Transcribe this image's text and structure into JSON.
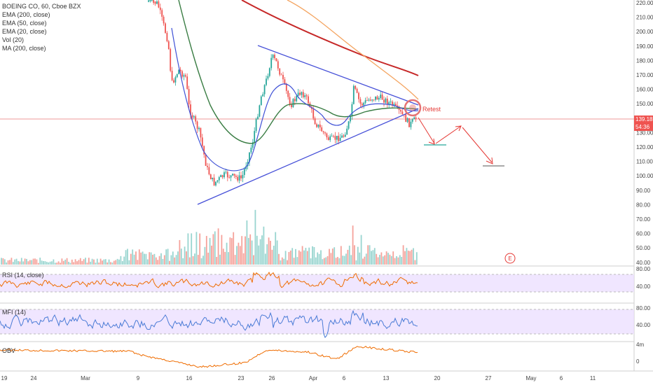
{
  "legend": {
    "title": "BOEING CO, 60, Cboe BZX",
    "lines": [
      "EMA (200, close)",
      "EMA (50, close)",
      "EMA (20, close)",
      "Vol (20)",
      "MA (200, close)"
    ]
  },
  "panels": {
    "rsi": "RSI (14, close)",
    "mfi": "MFI (14)",
    "obv": "OBV"
  },
  "annotations": {
    "retest": "Retest",
    "earnings_marker": "E"
  },
  "price_badges": {
    "last_price": "139.18",
    "countdown": "54:36"
  },
  "colors": {
    "ema200": "#c62828",
    "ema50": "#3a7d44",
    "ema20": "#3f51d6",
    "ma200": "#f4a460",
    "triangle": "#4650d8",
    "arrows": "#e53935",
    "up": "#26a69a",
    "down": "#ef5350",
    "rsi": "#ef6c00",
    "mfi": "#4a7bd6",
    "obv": "#ef6c00",
    "band": "#eadcff"
  },
  "chart_data": [
    {
      "type": "line",
      "title": "BOEING CO, 60, Cboe BZX",
      "price_axis": {
        "ticks": [
          "220.00",
          "210.00",
          "200.00",
          "190.00",
          "180.00",
          "170.00",
          "160.00",
          "150.00",
          "140.00",
          "130.00",
          "120.00",
          "110.00",
          "100.00",
          "90.00",
          "80.00",
          "70.00",
          "60.00",
          "50.00",
          "40.00"
        ],
        "ylim": [
          35,
          225
        ]
      },
      "x_tick_labels": [
        "19",
        "24",
        "Mar",
        "9",
        "16",
        "23",
        "26",
        "Apr",
        "6",
        "13",
        "20",
        "27",
        "May",
        "6",
        "11"
      ],
      "series": [
        {
          "name": "EMA (200, close)",
          "x": [
            0.37,
            0.42,
            0.47,
            0.52,
            0.58,
            0.62
          ],
          "values": [
            226,
            217,
            205,
            193,
            183,
            177
          ]
        },
        {
          "name": "EMA (50, close)",
          "x": [
            0.27,
            0.3,
            0.33,
            0.36,
            0.4,
            0.44,
            0.48,
            0.52,
            0.56,
            0.6,
            0.63
          ],
          "values": [
            222,
            185,
            150,
            128,
            122,
            145,
            146,
            134,
            142,
            148,
            144
          ]
        },
        {
          "name": "EMA (20, close)",
          "x": [
            0.26,
            0.3,
            0.33,
            0.35,
            0.38,
            0.4,
            0.43,
            0.46,
            0.5,
            0.54,
            0.58,
            0.63
          ],
          "values": [
            175,
            125,
            100,
            96,
            107,
            163,
            152,
            143,
            127,
            142,
            148,
            140
          ]
        },
        {
          "name": "MA (200, close)",
          "x": [
            0.44,
            0.48,
            0.52,
            0.56,
            0.6,
            0.64
          ],
          "values": [
            226,
            208,
            188,
            172,
            160,
            152
          ]
        }
      ],
      "trendlines": [
        {
          "from": [
            0.3,
            79
          ],
          "to": [
            0.64,
            141
          ]
        },
        {
          "from": [
            0.39,
            189
          ],
          "to": [
            0.64,
            144
          ]
        }
      ],
      "projection_levels": [
        120,
        106
      ],
      "last_price": 139.18
    },
    {
      "type": "line",
      "title": "RSI (14, close)",
      "ticks": [
        "80.00",
        "40.00"
      ],
      "bands": [
        30,
        70
      ],
      "last": 42
    },
    {
      "type": "line",
      "title": "MFI (14)",
      "ticks": [
        "80.00",
        "40.00"
      ],
      "bands": [
        20,
        80
      ],
      "last": 45
    },
    {
      "type": "line",
      "title": "OBV",
      "ticks": [
        "4m",
        "0"
      ]
    }
  ]
}
